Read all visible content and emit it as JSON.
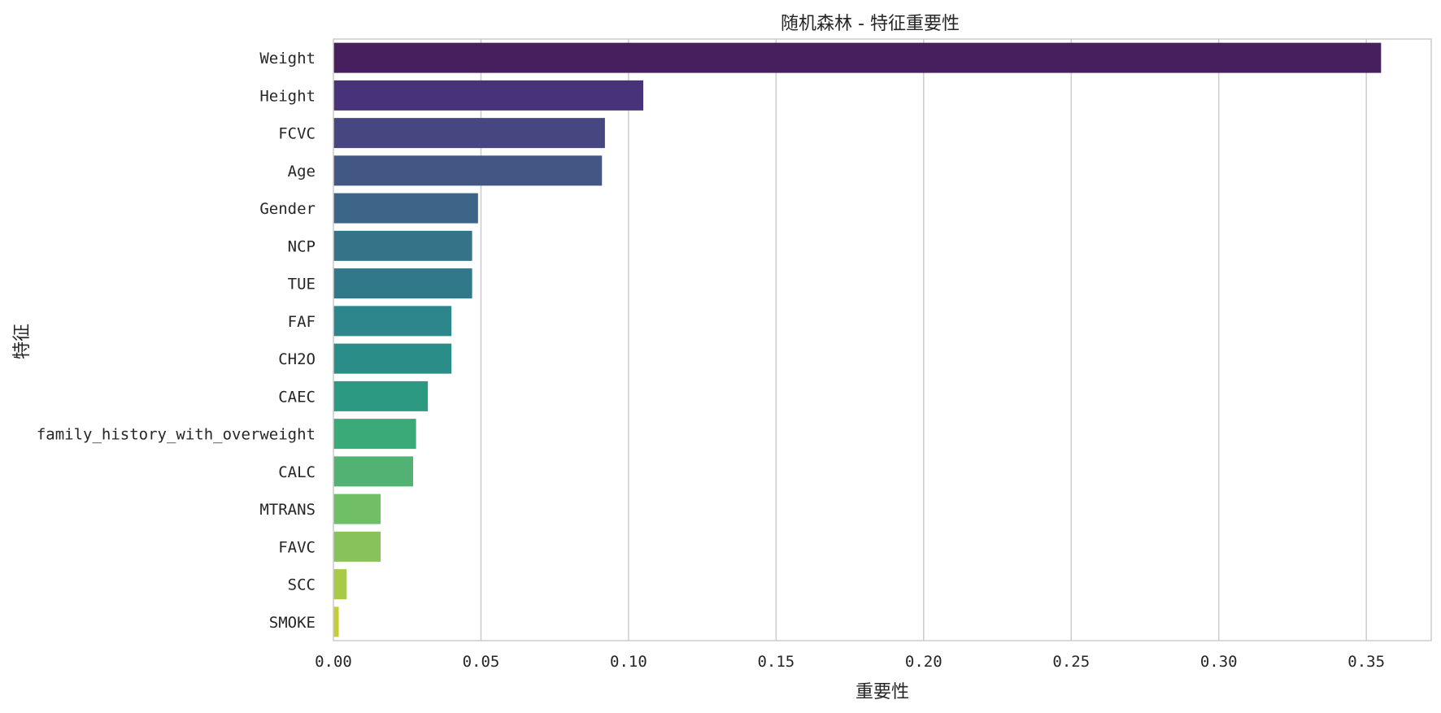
{
  "chart_data": {
    "type": "bar",
    "orientation": "horizontal",
    "title": "随机森林 - 特征重要性",
    "xlabel": "重要性",
    "ylabel": "特征",
    "xlim": [
      0,
      0.372
    ],
    "xticks": [
      0.0,
      0.05,
      0.1,
      0.15,
      0.2,
      0.25,
      0.3,
      0.35
    ],
    "xtick_labels": [
      "0.00",
      "0.05",
      "0.10",
      "0.15",
      "0.20",
      "0.25",
      "0.30",
      "0.35"
    ],
    "grid": "x",
    "colormap": "viridis",
    "categories": [
      "Weight",
      "Height",
      "FCVC",
      "Age",
      "Gender",
      "NCP",
      "TUE",
      "FAF",
      "CH2O",
      "CAEC",
      "family_history_with_overweight",
      "CALC",
      "MTRANS",
      "FAVC",
      "SCC",
      "SMOKE"
    ],
    "values": [
      0.355,
      0.105,
      0.092,
      0.091,
      0.049,
      0.047,
      0.047,
      0.04,
      0.04,
      0.032,
      0.028,
      0.027,
      0.016,
      0.016,
      0.0045,
      0.0018
    ],
    "colors": [
      "#471f5f",
      "#48327a",
      "#464681",
      "#425784",
      "#3c6588",
      "#357389",
      "#31788a",
      "#2c868b",
      "#2b8d87",
      "#2c9a82",
      "#3aaa78",
      "#52b273",
      "#70bf66",
      "#87c25a",
      "#a9ca45",
      "#c4ce30"
    ]
  }
}
